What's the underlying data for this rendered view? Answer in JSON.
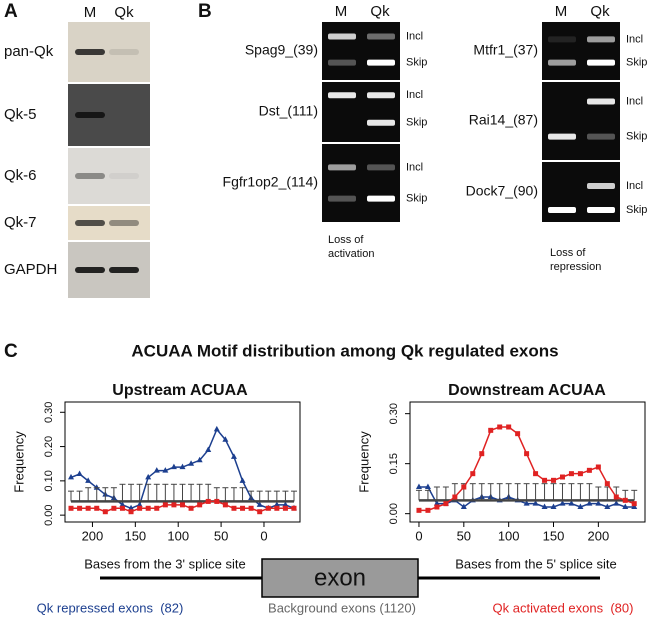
{
  "panel_a": {
    "label": "A",
    "lanes": [
      "M",
      "Qk"
    ],
    "rows": [
      "pan-Qk",
      "Qk-5",
      "Qk-6",
      "Qk-7",
      "GAPDH"
    ]
  },
  "panel_b": {
    "label": "B",
    "groups": [
      {
        "lanes": [
          "M",
          "Qk"
        ],
        "genes": [
          {
            "name": "Spag9_(39)",
            "bands": [
              "Incl",
              "Skip"
            ]
          },
          {
            "name": "Dst_(111)",
            "bands": [
              "Incl",
              "Skip"
            ]
          },
          {
            "name": "Fgfr1op2_(114)",
            "bands": [
              "Incl",
              "Skip"
            ]
          }
        ],
        "caption": [
          "Loss of",
          "activation"
        ]
      },
      {
        "lanes": [
          "M",
          "Qk"
        ],
        "genes": [
          {
            "name": "Mtfr1_(37)",
            "bands": [
              "Incl",
              "Skip"
            ]
          },
          {
            "name": "Rai14_(87)",
            "bands": [
              "Incl",
              "Skip"
            ]
          },
          {
            "name": "Dock7_(90)",
            "bands": [
              "Incl",
              "Skip"
            ]
          }
        ],
        "caption": [
          "Loss of",
          "repression"
        ]
      }
    ]
  },
  "panel_c": {
    "label": "C",
    "title": "ACUAA Motif distribution among Qk regulated exons",
    "diagram": {
      "left": "Bases from the 3' splice site",
      "exon": "exon",
      "right": "Bases from the 5' splice site"
    }
  },
  "chart_data": [
    {
      "type": "line",
      "title": "Upstream ACUAA",
      "y_label": "Frequency",
      "x": [
        225,
        215,
        205,
        195,
        185,
        175,
        165,
        155,
        145,
        135,
        125,
        115,
        105,
        95,
        85,
        75,
        65,
        55,
        45,
        35,
        25,
        15,
        5,
        -5,
        -15,
        -25,
        -35
      ],
      "xlim": [
        232,
        -42
      ],
      "xticks": [
        200,
        150,
        100,
        50,
        0
      ],
      "ylim": [
        -0.02,
        0.33
      ],
      "yticks": [
        {
          "value": 0,
          "label": "0.00"
        },
        {
          "value": 0.1,
          "label": "0.10"
        },
        {
          "value": 0.2,
          "label": "0.20"
        },
        {
          "value": 0.3,
          "label": "0.30"
        }
      ],
      "series": [
        {
          "name": "Qk repressed exons  (82)",
          "color": "#1c3f8f",
          "marker": "triangle",
          "values": [
            0.11,
            0.12,
            0.1,
            0.08,
            0.06,
            0.05,
            0.03,
            0.02,
            0.03,
            0.11,
            0.13,
            0.13,
            0.14,
            0.14,
            0.15,
            0.16,
            0.19,
            0.25,
            0.22,
            0.17,
            0.1,
            0.05,
            0.03,
            0.02,
            0.03,
            0.03,
            0.02
          ]
        },
        {
          "name": "Background exons (1120)",
          "color": "#444444",
          "marker": "none",
          "values": [
            0.04,
            0.04,
            0.04,
            0.04,
            0.04,
            0.04,
            0.04,
            0.04,
            0.04,
            0.04,
            0.04,
            0.04,
            0.04,
            0.04,
            0.04,
            0.04,
            0.04,
            0.04,
            0.04,
            0.04,
            0.04,
            0.04,
            0.04,
            0.04,
            0.04,
            0.04,
            0.04
          ],
          "errors": [
            0.03,
            0.03,
            0.04,
            0.04,
            0.04,
            0.04,
            0.05,
            0.05,
            0.05,
            0.05,
            0.05,
            0.05,
            0.05,
            0.05,
            0.05,
            0.05,
            0.05,
            0.04,
            0.04,
            0.04,
            0.04,
            0.03,
            0.03,
            0.03,
            0.03,
            0.03,
            0.03
          ]
        },
        {
          "name": "Qk activated exons  (80)",
          "color": "#e02222",
          "marker": "square",
          "values": [
            0.02,
            0.02,
            0.02,
            0.02,
            0.01,
            0.02,
            0.02,
            0.01,
            0.02,
            0.02,
            0.02,
            0.03,
            0.03,
            0.03,
            0.02,
            0.03,
            0.04,
            0.04,
            0.03,
            0.02,
            0.02,
            0.02,
            0.01,
            0.02,
            0.02,
            0.02,
            0.02
          ]
        }
      ]
    },
    {
      "type": "line",
      "title": "Downstream ACUAA",
      "y_label": "Frequency",
      "x": [
        0,
        10,
        20,
        30,
        40,
        50,
        60,
        70,
        80,
        90,
        100,
        110,
        120,
        130,
        140,
        150,
        160,
        170,
        180,
        190,
        200,
        210,
        220,
        230,
        240
      ],
      "xlim": [
        -10,
        252
      ],
      "xticks": [
        0,
        50,
        100,
        150,
        200
      ],
      "ylim": [
        -0.025,
        0.335
      ],
      "yticks": [
        {
          "value": 0,
          "label": "0.00"
        },
        {
          "value": 0.15,
          "label": "0.15"
        },
        {
          "value": 0.3,
          "label": "0.30"
        }
      ],
      "series": [
        {
          "color": "#1c3f8f",
          "marker": "triangle",
          "values": [
            0.08,
            0.08,
            0.03,
            0.03,
            0.04,
            0.02,
            0.04,
            0.05,
            0.05,
            0.04,
            0.05,
            0.04,
            0.03,
            0.03,
            0.02,
            0.02,
            0.03,
            0.03,
            0.02,
            0.03,
            0.03,
            0.02,
            0.03,
            0.02,
            0.02
          ]
        },
        {
          "color": "#444444",
          "marker": "none",
          "values": [
            0.04,
            0.04,
            0.04,
            0.04,
            0.04,
            0.04,
            0.04,
            0.04,
            0.04,
            0.04,
            0.04,
            0.04,
            0.04,
            0.04,
            0.04,
            0.04,
            0.04,
            0.04,
            0.04,
            0.04,
            0.04,
            0.04,
            0.04,
            0.04,
            0.04
          ],
          "errors": [
            0.03,
            0.03,
            0.04,
            0.04,
            0.05,
            0.05,
            0.05,
            0.05,
            0.05,
            0.05,
            0.05,
            0.05,
            0.05,
            0.05,
            0.05,
            0.05,
            0.05,
            0.05,
            0.05,
            0.05,
            0.04,
            0.04,
            0.04,
            0.03,
            0.03
          ]
        },
        {
          "color": "#e02222",
          "marker": "square",
          "values": [
            0.01,
            0.01,
            0.02,
            0.03,
            0.05,
            0.08,
            0.12,
            0.18,
            0.25,
            0.26,
            0.26,
            0.24,
            0.18,
            0.12,
            0.1,
            0.1,
            0.11,
            0.12,
            0.12,
            0.13,
            0.14,
            0.09,
            0.05,
            0.04,
            0.03
          ]
        }
      ]
    }
  ]
}
